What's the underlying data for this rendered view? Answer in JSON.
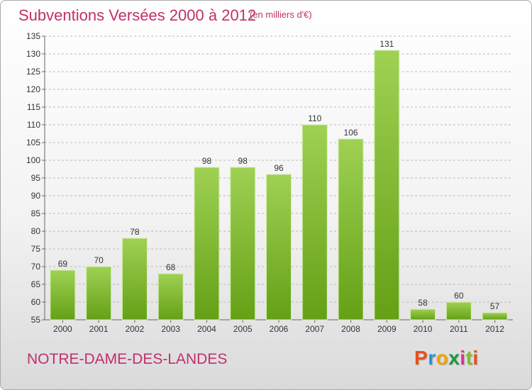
{
  "header": {
    "title": "Subventions Versées 2000 à 2012",
    "unit_note": "(en milliers d'€)"
  },
  "commune": "NOTRE-DAME-DES-LANDES",
  "logo": {
    "letters": [
      "P",
      "r",
      "o",
      "x",
      "i",
      "t",
      "i"
    ]
  },
  "colors": {
    "accent_text": "#c0306b",
    "bar_light": "#9fd153",
    "bar_dark": "#64a016",
    "grid": "#b8b8b8"
  },
  "chart_data": {
    "type": "bar",
    "title": "Subventions Versées 2000 à 2012",
    "xlabel": "",
    "ylabel": "",
    "categories": [
      "2000",
      "2001",
      "2002",
      "2003",
      "2004",
      "2005",
      "2006",
      "2007",
      "2008",
      "2009",
      "2010",
      "2011",
      "2012"
    ],
    "values": [
      69,
      70,
      78,
      68,
      98,
      98,
      96,
      110,
      106,
      131,
      58,
      60,
      57
    ],
    "data_labels": [
      "69",
      "70",
      "78",
      "68",
      "98",
      "98",
      "96",
      "110",
      "106",
      "131",
      "58",
      "60",
      "57"
    ],
    "ylim": [
      55,
      135
    ],
    "yticks": [
      55,
      60,
      65,
      70,
      75,
      80,
      85,
      90,
      95,
      100,
      105,
      110,
      115,
      120,
      125,
      130,
      135
    ],
    "grid": "horizontal dashed",
    "legend": "none"
  }
}
